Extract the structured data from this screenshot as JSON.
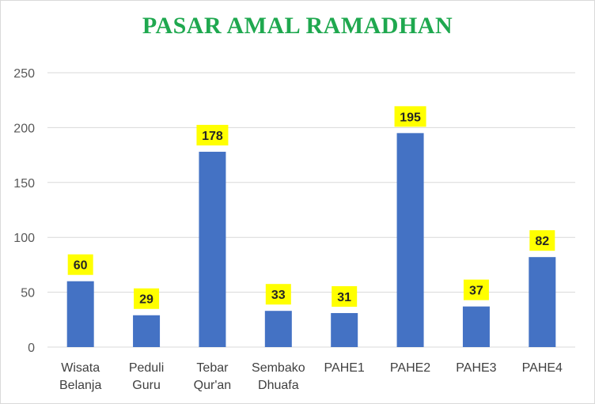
{
  "chart_data": {
    "type": "bar",
    "title": "PASAR AMAL RAMADHAN",
    "categories": [
      [
        "Wisata",
        "Belanja"
      ],
      [
        "Peduli",
        "Guru"
      ],
      [
        "Tebar",
        "Qur'an"
      ],
      [
        "Sembako",
        "Dhuafa"
      ],
      [
        "PAHE1"
      ],
      [
        "PAHE2"
      ],
      [
        "PAHE3"
      ],
      [
        "PAHE4"
      ]
    ],
    "values": [
      60,
      29,
      178,
      33,
      31,
      195,
      37,
      82
    ],
    "ylim": [
      0,
      250
    ],
    "yticks": [
      0,
      50,
      100,
      150,
      200,
      250
    ],
    "grid": true,
    "legend": "none",
    "colors": {
      "title": "#1fa84f",
      "bar": "#4472c4",
      "label_bg": "#ffff00",
      "grid": "#d9d9d9"
    }
  }
}
